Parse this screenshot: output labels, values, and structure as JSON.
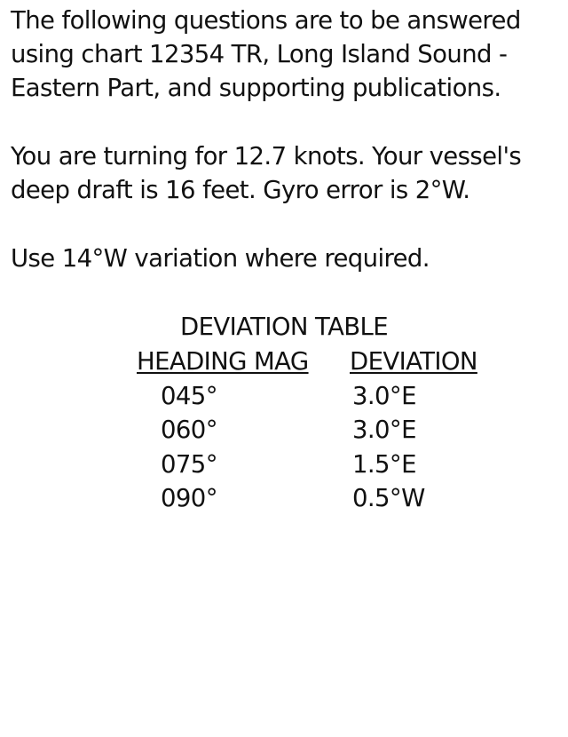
{
  "intro": {
    "lines": [
      "The following questions are to be answered",
      "using chart 12354 TR, Long Island Sound -",
      "Eastern Part, and supporting publications."
    ]
  },
  "vessel": {
    "lines": [
      "You are turning for 12.7 knots. Your vessel's",
      "deep draft is 16 feet. Gyro error is 2°W."
    ]
  },
  "variation": {
    "line": "Use 14°W variation where required."
  },
  "deviation_table": {
    "title": "DEVIATION TABLE",
    "headers": {
      "heading": "HEADING MAG",
      "deviation": "DEVIATION"
    },
    "rows": [
      {
        "heading": "045°",
        "deviation": "3.0°E"
      },
      {
        "heading": "060°",
        "deviation": "3.0°E"
      },
      {
        "heading": "075°",
        "deviation": "1.5°E"
      },
      {
        "heading": "090°",
        "deviation": "0.5°W"
      }
    ]
  }
}
